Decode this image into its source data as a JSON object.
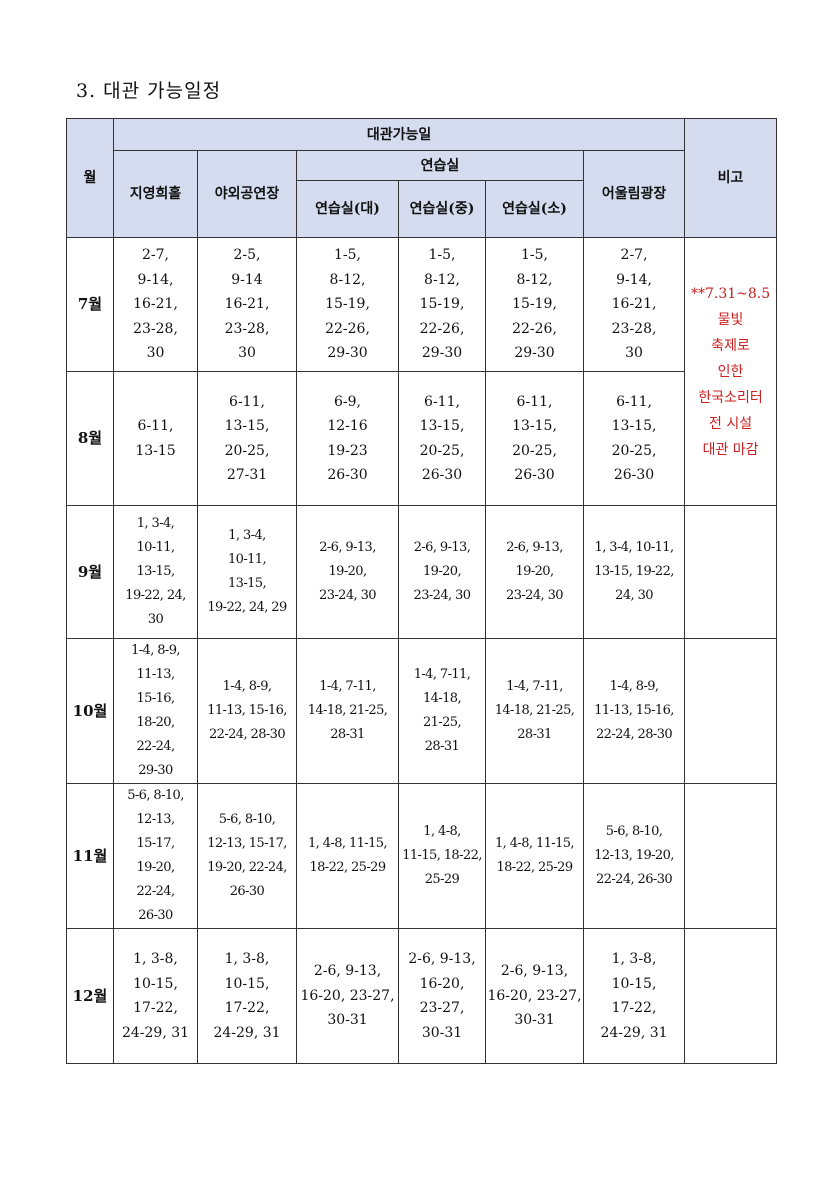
{
  "section_title": "3. 대관 가능일정",
  "table": {
    "header": {
      "month": "월",
      "available": "대관가능일",
      "practice_group": "연습실",
      "remarks": "비고",
      "venues": [
        "지영희홀",
        "야외공연장",
        "연습실(대)",
        "연습실(중)",
        "연습실(소)",
        "어울림광장"
      ]
    },
    "remark_note": "**7.31~8.5\n물빛\n축제로\n인한\n한국소리터\n전 시설\n대관 마감",
    "rows": [
      {
        "month": "7월",
        "cells": [
          "2-7,\n9-14,\n16-21,\n23-28,\n30",
          "2-5,\n9-14\n16-21,\n23-28,\n30",
          "1-5,\n8-12,\n15-19,\n22-26,\n29-30",
          "1-5,\n8-12,\n15-19,\n22-26,\n29-30",
          "1-5,\n8-12,\n15-19,\n22-26,\n29-30",
          "2-7,\n9-14,\n16-21,\n23-28,\n30"
        ]
      },
      {
        "month": "8월",
        "cells": [
          "6-11,\n13-15",
          "6-11,\n13-15,\n20-25,\n27-31",
          "6-9,\n12-16\n19-23\n26-30",
          "6-11,\n13-15,\n20-25,\n26-30",
          "6-11,\n13-15,\n20-25,\n26-30",
          "6-11,\n13-15,\n20-25,\n26-30"
        ]
      },
      {
        "month": "9월",
        "cells": [
          "1, 3-4,\n10-11,\n13-15,\n19-22, 24,\n30",
          "1, 3-4,\n10-11,\n13-15,\n19-22, 24, 29",
          "2-6, 9-13,\n19-20,\n23-24, 30",
          "2-6, 9-13,\n19-20,\n23-24, 30",
          "2-6, 9-13,\n19-20,\n23-24, 30",
          "1, 3-4, 10-11,\n13-15, 19-22,\n24, 30"
        ]
      },
      {
        "month": "10월",
        "cells": [
          "1-4, 8-9,\n11-13,\n15-16,\n18-20,\n22-24,\n29-30",
          "1-4, 8-9,\n11-13, 15-16,\n22-24, 28-30",
          "1-4, 7-11,\n14-18, 21-25,\n28-31",
          "1-4, 7-11,\n14-18,\n21-25,\n28-31",
          "1-4, 7-11,\n14-18, 21-25,\n28-31",
          "1-4, 8-9,\n11-13, 15-16,\n22-24, 28-30"
        ]
      },
      {
        "month": "11월",
        "cells": [
          "5-6, 8-10,\n12-13,\n15-17,\n19-20,\n22-24,\n26-30",
          "5-6, 8-10,\n12-13, 15-17,\n19-20, 22-24,\n26-30",
          "1, 4-8, 11-15,\n18-22, 25-29",
          "1, 4-8,\n11-15, 18-22,\n25-29",
          "1, 4-8, 11-15,\n18-22, 25-29",
          "5-6, 8-10,\n12-13, 19-20,\n22-24, 26-30"
        ]
      },
      {
        "month": "12월",
        "cells": [
          "1, 3-8,\n10-15,\n17-22,\n24-29, 31",
          "1, 3-8,\n10-15,\n17-22,\n24-29, 31",
          "2-6, 9-13,\n16-20, 23-27,\n30-31",
          "2-6, 9-13,\n16-20,\n23-27,\n30-31",
          "2-6, 9-13,\n16-20, 23-27,\n30-31",
          "1, 3-8,\n10-15,\n17-22,\n24-29, 31"
        ]
      }
    ]
  }
}
